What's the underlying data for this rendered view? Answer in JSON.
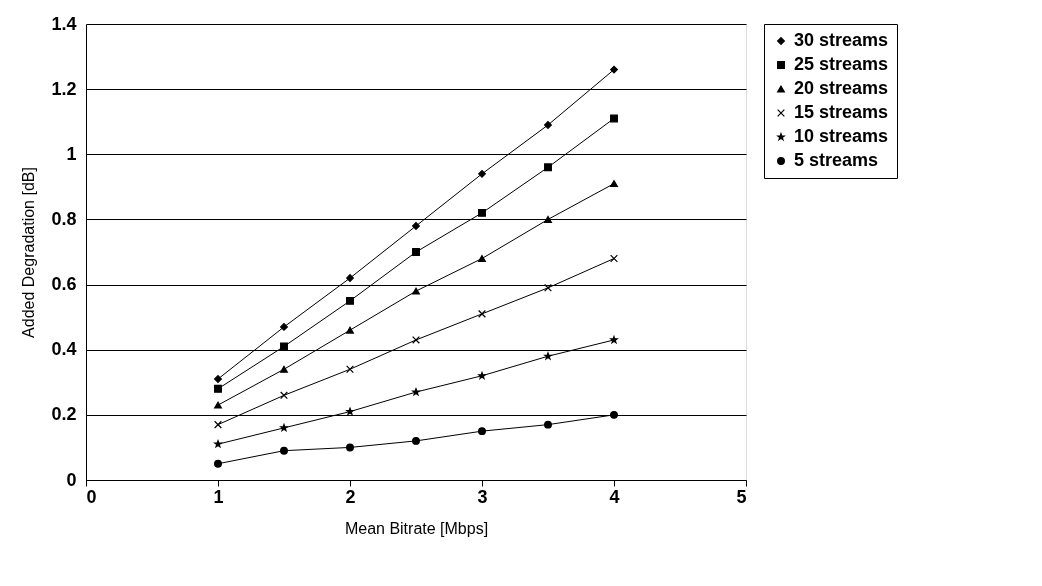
{
  "chart_data": {
    "type": "line",
    "xlabel": "Mean Bitrate [Mbps]",
    "ylabel": "Added Degradation [dB]",
    "x": [
      1,
      1.5,
      2,
      2.5,
      3,
      3.5,
      4
    ],
    "series": [
      {
        "name": "30 streams",
        "color": "#000000",
        "marker": "diamond",
        "values": [
          0.31,
          0.47,
          0.62,
          0.78,
          0.94,
          1.09,
          1.26
        ]
      },
      {
        "name": "25 streams",
        "color": "#000000",
        "marker": "square",
        "values": [
          0.28,
          0.41,
          0.55,
          0.7,
          0.82,
          0.96,
          1.11
        ]
      },
      {
        "name": "20 streams",
        "color": "#000000",
        "marker": "triangle",
        "values": [
          0.23,
          0.34,
          0.46,
          0.58,
          0.68,
          0.8,
          0.91
        ]
      },
      {
        "name": "15 streams",
        "color": "#000000",
        "marker": "cross",
        "values": [
          0.17,
          0.26,
          0.34,
          0.43,
          0.51,
          0.59,
          0.68
        ]
      },
      {
        "name": "10 streams",
        "color": "#000000",
        "marker": "star",
        "values": [
          0.11,
          0.16,
          0.21,
          0.27,
          0.32,
          0.38,
          0.43
        ]
      },
      {
        "name": "5 streams",
        "color": "#000000",
        "marker": "circle",
        "values": [
          0.05,
          0.09,
          0.1,
          0.12,
          0.15,
          0.17,
          0.2
        ]
      }
    ],
    "xlim": [
      0,
      5
    ],
    "xticks": [
      0,
      1,
      2,
      3,
      4,
      5
    ],
    "ylim": [
      0,
      1.4
    ],
    "yticks": [
      0,
      0.2,
      0.4,
      0.6,
      0.8,
      1,
      1.2,
      1.4
    ],
    "grid": "y",
    "legend": "right",
    "line_style": "solid"
  }
}
